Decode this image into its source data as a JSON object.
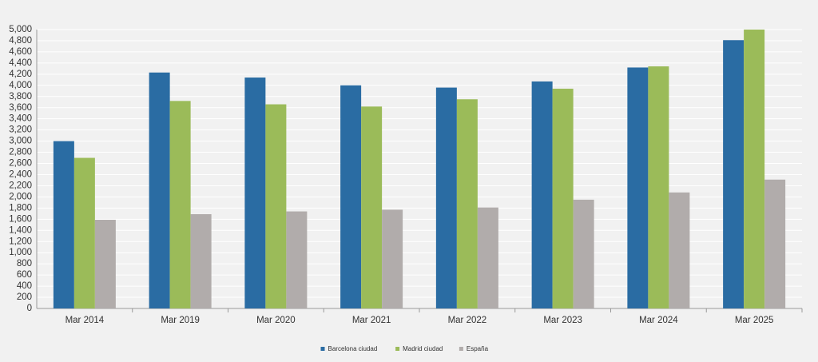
{
  "chart_data": {
    "type": "bar",
    "categories": [
      "Mar 2014",
      "Mar 2019",
      "Mar 2020",
      "Mar 2021",
      "Mar 2022",
      "Mar 2023",
      "Mar 2024",
      "Mar 2025"
    ],
    "series": [
      {
        "name": "Barcelona ciudad",
        "color": "#2a6ca3",
        "values": [
          3000,
          4230,
          4140,
          4000,
          3960,
          4070,
          4320,
          4810
        ]
      },
      {
        "name": "Madrid ciudad",
        "color": "#9bbb59",
        "values": [
          2700,
          3720,
          3660,
          3620,
          3750,
          3940,
          4340,
          5000
        ]
      },
      {
        "name": "España",
        "color": "#b1acab",
        "values": [
          1590,
          1690,
          1740,
          1770,
          1810,
          1950,
          2080,
          2310
        ]
      }
    ],
    "ylim": [
      0,
      5000
    ],
    "yticks": [
      0,
      200,
      400,
      600,
      800,
      {
        "value": 1000,
        "label": "1,000"
      },
      {
        "value": 1200,
        "label": "1,200"
      },
      {
        "value": 1400,
        "label": "1,400"
      },
      {
        "value": 1600,
        "label": "1,600"
      },
      {
        "value": 1800,
        "label": "1,800"
      },
      {
        "value": 2000,
        "label": "2,000"
      },
      {
        "value": 2200,
        "label": "2,200"
      },
      {
        "value": 2400,
        "label": "2,400"
      },
      {
        "value": 2600,
        "label": "2,600"
      },
      {
        "value": 2800,
        "label": "2,800"
      },
      {
        "value": 3000,
        "label": "3,000"
      },
      {
        "value": 3200,
        "label": "3,200"
      },
      {
        "value": 3400,
        "label": "3,400"
      },
      {
        "value": 3600,
        "label": "3,600"
      },
      {
        "value": 3800,
        "label": "3,800"
      },
      {
        "value": 4000,
        "label": "4,000"
      },
      {
        "value": 4200,
        "label": "4,200"
      },
      {
        "value": 4400,
        "label": "4,400"
      },
      {
        "value": 4600,
        "label": "4,600"
      },
      {
        "value": 4800,
        "label": "4,800"
      },
      {
        "value": 5000,
        "label": "5,000"
      }
    ],
    "grid": true,
    "legend": "bottom"
  }
}
